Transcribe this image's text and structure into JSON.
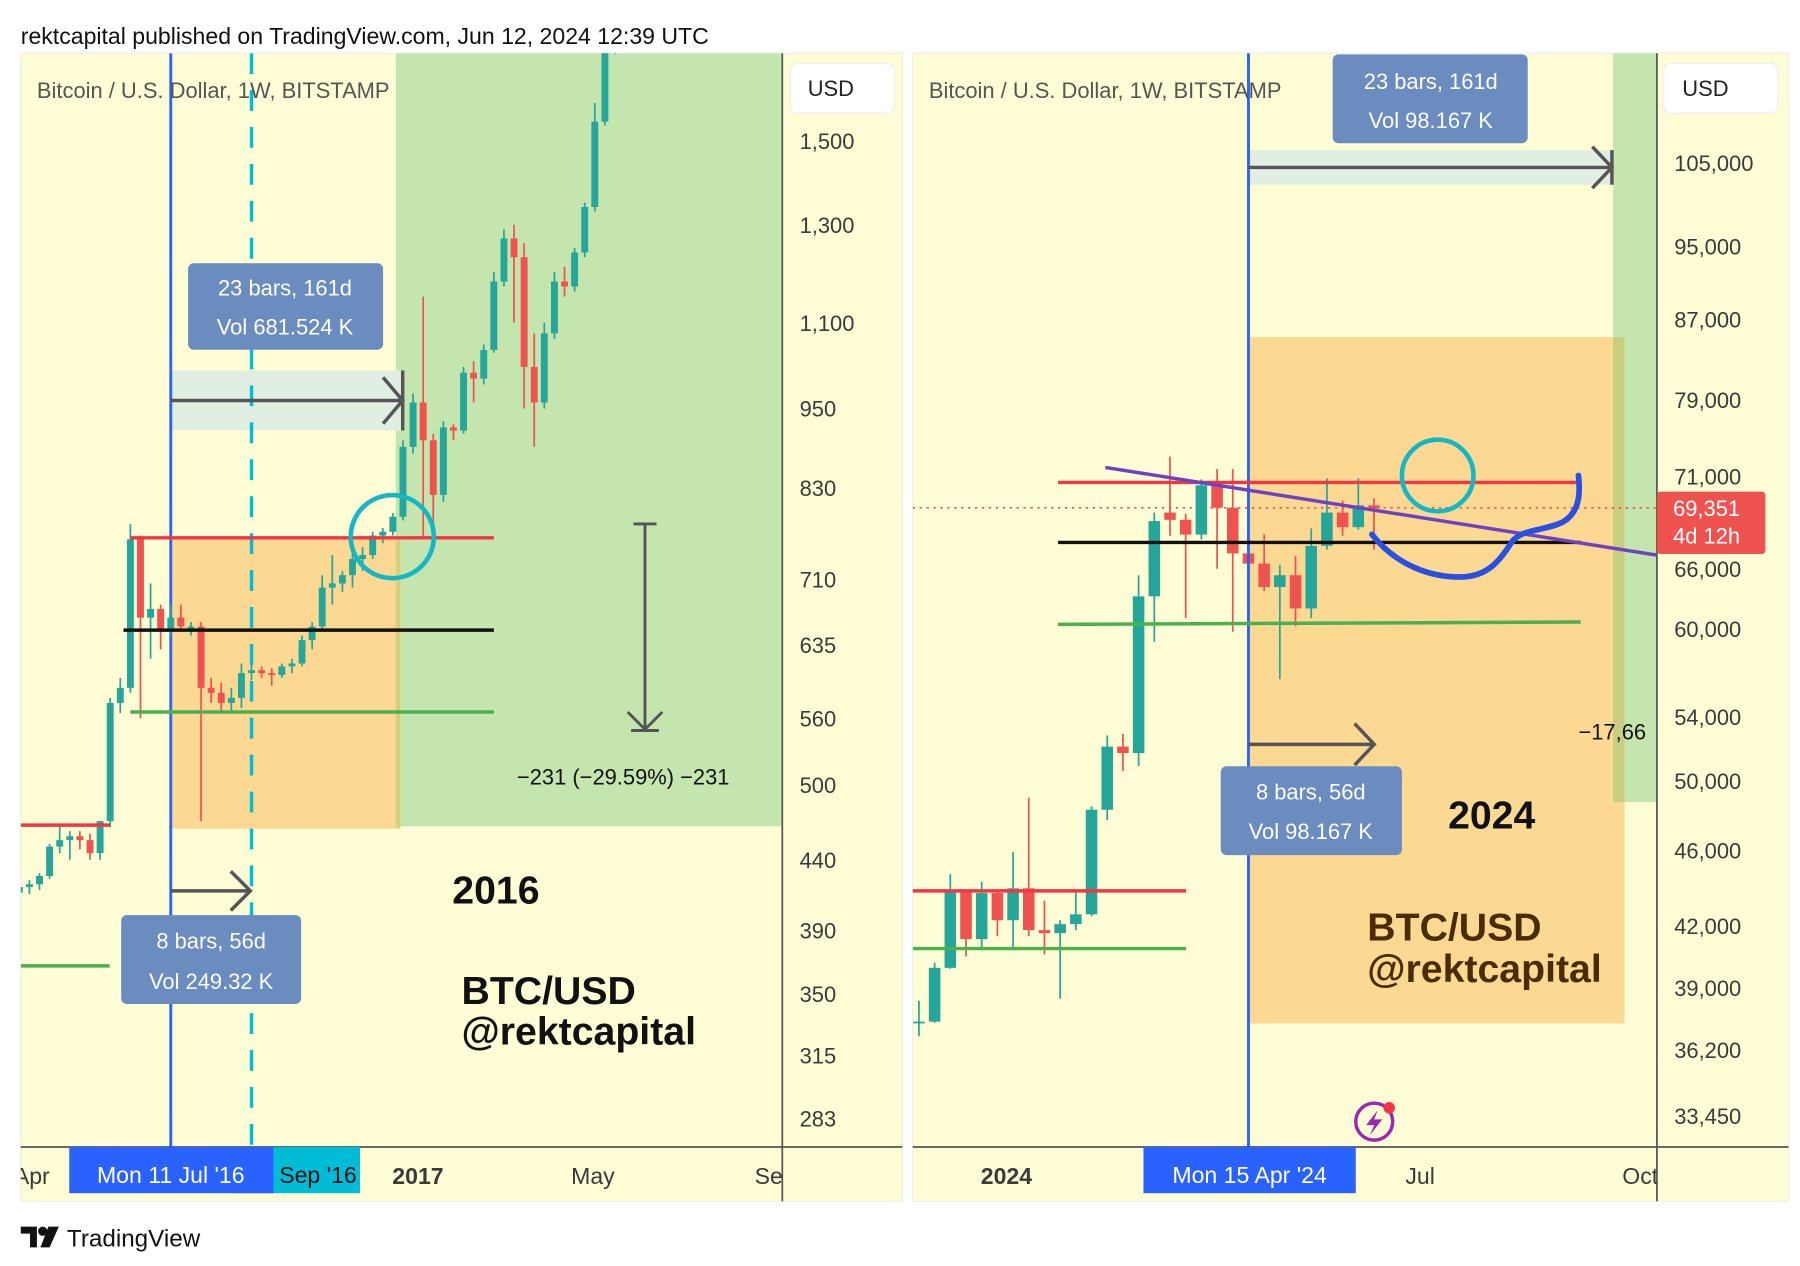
{
  "header": {
    "published": "rektcapital published on TradingView.com, Jun 12, 2024 12:39 UTC"
  },
  "footer": {
    "brand": "TradingView"
  },
  "colors": {
    "background": "#fffdd6",
    "up": "#26a69a",
    "down": "#ef5350",
    "green_zone": "#c5e5af",
    "orange_zone": "#fcd993",
    "measure_box": "#6b8cbf",
    "date_marker": "#2962ff",
    "cyan": "#00bcd4",
    "trendline": "#6f42c1"
  },
  "left": {
    "symbol": "Bitcoin / U.S. Dollar, 1W, BITSTAMP",
    "currency": "USD",
    "price_labels": [
      "1,500",
      "1,300",
      "1,100",
      "950",
      "830",
      "710",
      "635",
      "560",
      "500",
      "440",
      "390",
      "350",
      "315",
      "283"
    ],
    "time_labels": {
      "apr": "Apr",
      "marker": "Mon 11 Jul '16",
      "marker2": "Sep '16",
      "y2017": "2017",
      "may": "May",
      "sep": "Sep"
    },
    "range_top": {
      "line1": "23 bars, 161d",
      "line2": "Vol 681.524 K"
    },
    "range_bottom": {
      "line1": "8 bars, 56d",
      "line2": "Vol 249.32 K"
    },
    "measure": "−231 (−29.59%) −231",
    "year_label": "2016",
    "watermark1": "BTC/USD",
    "watermark2": "@rektcapital"
  },
  "right": {
    "symbol": "Bitcoin / U.S. Dollar, 1W, BITSTAMP",
    "currency": "USD",
    "price_labels": [
      "105,000",
      "95,000",
      "87,000",
      "79,000",
      "71,000",
      "66,000",
      "60,000",
      "54,000",
      "50,000",
      "46,000",
      "42,000",
      "39,000",
      "36,200",
      "33,450"
    ],
    "last_price": "69,351",
    "countdown": "4d 12h",
    "time_labels": {
      "y2024": "2024",
      "marker": "Mon 15 Apr '24",
      "jul": "Jul",
      "oct": "Oct"
    },
    "range_top": {
      "line1": "23 bars, 161d",
      "line2": "Vol 98.167 K"
    },
    "range_bottom": {
      "line1": "8 bars, 56d",
      "line2": "Vol 98.167 K"
    },
    "measure": "−17,66",
    "year_label": "2024",
    "watermark1": "BTC/USD",
    "watermark2": "@rektcapital",
    "icon": "lightning-icon"
  },
  "chart_data": [
    {
      "type": "candlestick",
      "title": "Bitcoin / U.S. Dollar, 1W, BITSTAMP",
      "first_week": "2016-03-21",
      "interval": "1W",
      "scale": "log",
      "ylim": [
        270,
        1600
      ],
      "ohlc": [
        [
          412,
          418,
          408,
          416
        ],
        [
          416,
          422,
          412,
          420
        ],
        [
          420,
          425,
          415,
          422
        ],
        [
          422,
          430,
          418,
          428
        ],
        [
          428,
          452,
          426,
          450
        ],
        [
          450,
          468,
          445,
          455
        ],
        [
          455,
          462,
          440,
          458
        ],
        [
          458,
          462,
          448,
          455
        ],
        [
          455,
          460,
          440,
          445
        ],
        [
          445,
          470,
          440,
          470
        ],
        [
          470,
          580,
          465,
          575
        ],
        [
          575,
          600,
          565,
          590
        ],
        [
          590,
          780,
          585,
          760
        ],
        [
          760,
          765,
          560,
          665
        ],
        [
          665,
          705,
          620,
          675
        ],
        [
          675,
          680,
          630,
          650
        ],
        [
          650,
          680,
          645,
          665
        ],
        [
          665,
          680,
          650,
          655
        ],
        [
          655,
          660,
          645,
          655
        ],
        [
          655,
          660,
          470,
          590
        ],
        [
          590,
          600,
          575,
          585
        ],
        [
          585,
          595,
          565,
          575
        ],
        [
          575,
          590,
          565,
          580
        ],
        [
          580,
          615,
          570,
          605
        ],
        [
          605,
          615,
          598,
          608
        ],
        [
          608,
          612,
          600,
          605
        ],
        [
          605,
          610,
          592,
          603
        ],
        [
          603,
          615,
          600,
          612
        ],
        [
          612,
          620,
          605,
          615
        ],
        [
          615,
          645,
          612,
          640
        ],
        [
          640,
          660,
          630,
          655
        ],
        [
          655,
          715,
          650,
          700
        ],
        [
          700,
          740,
          680,
          705
        ],
        [
          705,
          720,
          695,
          715
        ],
        [
          715,
          745,
          700,
          735
        ],
        [
          735,
          750,
          720,
          740
        ],
        [
          740,
          770,
          735,
          765
        ],
        [
          765,
          775,
          755,
          770
        ],
        [
          770,
          795,
          765,
          790
        ],
        [
          790,
          900,
          785,
          890
        ],
        [
          890,
          975,
          880,
          960
        ],
        [
          960,
          1150,
          760,
          900
        ],
        [
          900,
          910,
          760,
          820
        ],
        [
          820,
          930,
          810,
          920
        ],
        [
          920,
          925,
          900,
          915
        ],
        [
          915,
          1020,
          910,
          1010
        ],
        [
          1010,
          1030,
          960,
          1000
        ],
        [
          1000,
          1060,
          990,
          1050
        ],
        [
          1050,
          1200,
          1045,
          1180
        ],
        [
          1180,
          1290,
          1170,
          1270
        ],
        [
          1270,
          1300,
          1100,
          1230
        ],
        [
          1230,
          1260,
          950,
          1020
        ],
        [
          1020,
          1080,
          890,
          960
        ],
        [
          960,
          1100,
          950,
          1080
        ],
        [
          1080,
          1200,
          1070,
          1180
        ],
        [
          1180,
          1210,
          1150,
          1170
        ],
        [
          1170,
          1250,
          1160,
          1240
        ],
        [
          1240,
          1350,
          1230,
          1340
        ],
        [
          1340,
          1600,
          1330,
          1550
        ],
        [
          1550,
          1800,
          1540,
          1750
        ],
        [
          1750,
          2100,
          1740,
          2000
        ]
      ],
      "levels": {
        "resistance": 762,
        "mid": 655,
        "support": 565
      }
    },
    {
      "type": "candlestick",
      "title": "Bitcoin / U.S. Dollar, 1W, BITSTAMP",
      "first_week": "2023-11-20",
      "interval": "1W",
      "scale": "log",
      "ylim": [
        32000,
        110000
      ],
      "ohlc": [
        [
          37400,
          38400,
          36800,
          37450
        ],
        [
          37450,
          40200,
          37400,
          39950
        ],
        [
          39950,
          44700,
          39900,
          43800
        ],
        [
          43800,
          43900,
          40500,
          41350
        ],
        [
          41350,
          44300,
          40800,
          43700
        ],
        [
          43700,
          43800,
          41500,
          42300
        ],
        [
          42300,
          45900,
          40800,
          43950
        ],
        [
          43950,
          49000,
          41500,
          41800
        ],
        [
          41800,
          43300,
          40600,
          41650
        ],
        [
          41650,
          42300,
          38500,
          42100
        ],
        [
          42100,
          43900,
          41800,
          42600
        ],
        [
          42600,
          48500,
          42500,
          48300
        ],
        [
          48300,
          52800,
          47700,
          52100
        ],
        [
          52100,
          52900,
          50600,
          51700
        ],
        [
          51700,
          64000,
          50900,
          62400
        ],
        [
          62400,
          69000,
          59100,
          68300
        ],
        [
          69000,
          73800,
          67100,
          68400
        ],
        [
          68400,
          68900,
          60800,
          67200
        ],
        [
          67200,
          71800,
          66800,
          71300
        ],
        [
          71300,
          72700,
          64500,
          69400
        ],
        [
          69400,
          72700,
          59800,
          65700
        ],
        [
          65700,
          67200,
          59600,
          64900
        ],
        [
          64900,
          67200,
          62800,
          63100
        ],
        [
          63100,
          64800,
          56500,
          64000
        ],
        [
          64000,
          65500,
          60200,
          61500
        ],
        [
          61500,
          67700,
          60800,
          66300
        ],
        [
          66300,
          71900,
          66000,
          69000
        ],
        [
          69000,
          70000,
          67100,
          67800
        ],
        [
          67800,
          71900,
          67600,
          69600
        ],
        [
          69600,
          70200,
          66000,
          69351
        ]
      ],
      "levels": {
        "resistance": 71500,
        "mid": 65000,
        "support": 60500,
        "prior_resistance": 44000,
        "prior_support": 41000
      }
    }
  ]
}
